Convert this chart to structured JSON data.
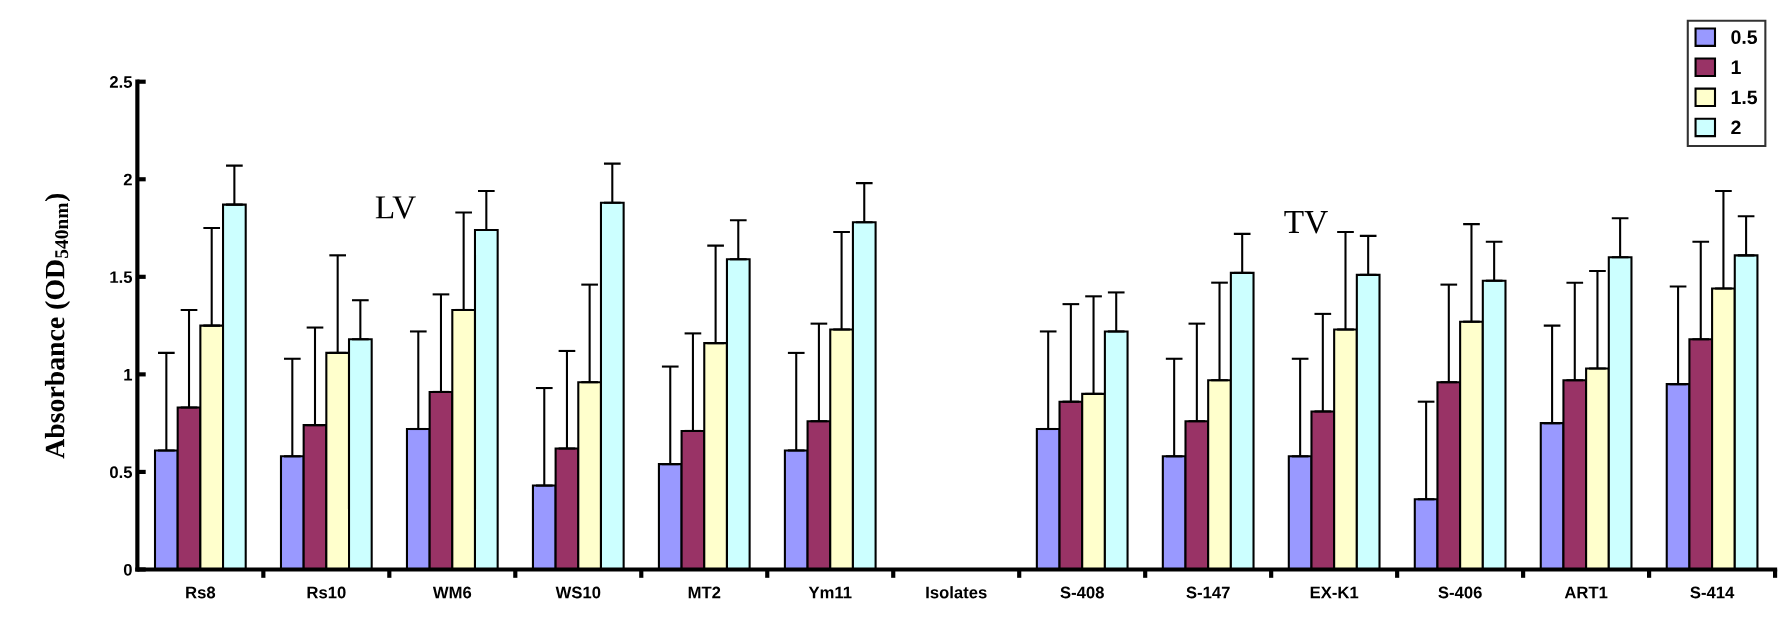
{
  "chart_data": {
    "type": "bar",
    "categories": [
      "Rs8",
      "Rs10",
      "WM6",
      "WS10",
      "MT2",
      "Ym11",
      "Isolates",
      "S-408",
      "S-147",
      "EX-K1",
      "S-406",
      "ART1",
      "S-414"
    ],
    "ylabel": "Absorbance (OD$_{540nm}$)",
    "ylim": [
      0,
      2.5
    ],
    "yticks": [
      0,
      0.5,
      1,
      1.5,
      2,
      2.5
    ],
    "grid": false,
    "legend": "top right",
    "annotations": [
      "LV",
      "TV"
    ],
    "series": [
      {
        "name": "0.5",
        "color": "#9999ff",
        "values": [
          0.61,
          0.58,
          0.72,
          0.43,
          0.54,
          0.61,
          null,
          0.72,
          0.58,
          0.58,
          0.36,
          0.75,
          0.95
        ],
        "errors": [
          [
            0.61,
            1.11
          ],
          [
            0.58,
            1.08
          ],
          [
            0.72,
            1.22
          ],
          [
            0.43,
            0.93
          ],
          [
            0.54,
            1.04
          ],
          [
            0.61,
            1.11
          ],
          null,
          [
            0.72,
            1.22
          ],
          [
            0.58,
            1.08
          ],
          [
            0.58,
            1.08
          ],
          [
            0.36,
            0.86
          ],
          [
            0.75,
            1.25
          ],
          [
            0.95,
            1.45
          ]
        ]
      },
      {
        "name": "1",
        "color": "#993366",
        "values": [
          0.83,
          0.74,
          0.91,
          0.62,
          0.71,
          0.76,
          null,
          0.86,
          0.76,
          0.81,
          0.96,
          0.97,
          1.18
        ],
        "errors": [
          [
            0.83,
            1.33
          ],
          [
            0.74,
            1.24
          ],
          [
            0.91,
            1.41
          ],
          [
            0.62,
            1.12
          ],
          [
            0.71,
            1.21
          ],
          [
            0.76,
            1.26
          ],
          null,
          [
            0.86,
            1.36
          ],
          [
            0.76,
            1.26
          ],
          [
            0.81,
            1.31
          ],
          [
            0.96,
            1.46
          ],
          [
            0.97,
            1.47
          ],
          [
            1.18,
            1.68
          ]
        ]
      },
      {
        "name": "1.5",
        "color": "#ffffcc",
        "values": [
          1.25,
          1.11,
          1.33,
          0.96,
          1.16,
          1.23,
          null,
          0.9,
          0.97,
          1.23,
          1.27,
          1.03,
          1.44
        ],
        "errors": [
          [
            1.25,
            1.75
          ],
          [
            1.11,
            1.61
          ],
          [
            1.33,
            1.83
          ],
          [
            0.96,
            1.46
          ],
          [
            1.16,
            1.66
          ],
          [
            1.23,
            1.73
          ],
          null,
          [
            0.9,
            1.4
          ],
          [
            0.97,
            1.47
          ],
          [
            1.23,
            1.73
          ],
          [
            1.27,
            1.77
          ],
          [
            1.03,
            1.53
          ],
          [
            1.44,
            1.94
          ]
        ]
      },
      {
        "name": "2",
        "color": "#ccffff",
        "values": [
          1.87,
          1.18,
          1.74,
          1.88,
          1.59,
          1.78,
          null,
          1.22,
          1.52,
          1.51,
          1.48,
          1.6,
          1.61
        ],
        "errors": [
          [
            1.87,
            2.07
          ],
          [
            1.18,
            1.38
          ],
          [
            1.74,
            1.94
          ],
          [
            1.88,
            2.08
          ],
          [
            1.59,
            1.79
          ],
          [
            1.78,
            1.98
          ],
          null,
          [
            1.22,
            1.42
          ],
          [
            1.52,
            1.72
          ],
          [
            1.51,
            1.71
          ],
          [
            1.48,
            1.68
          ],
          [
            1.6,
            1.8
          ],
          [
            1.61,
            1.81
          ]
        ]
      }
    ]
  }
}
